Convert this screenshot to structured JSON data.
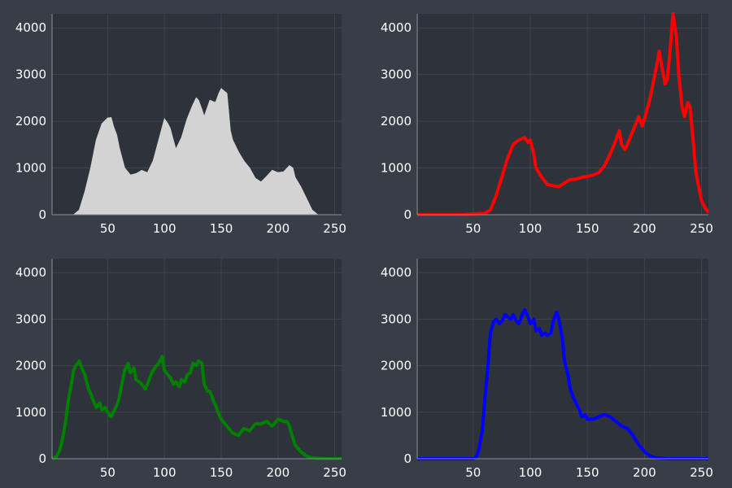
{
  "figure": {
    "background": "#383e48",
    "plot_background": "#2e323a",
    "grid_color": "#40454e",
    "axis_color": "#8a8f98"
  },
  "chart_data": [
    {
      "type": "area",
      "color": "#d3d3d3",
      "xlim": [
        1,
        256
      ],
      "ylim": [
        0,
        4300
      ],
      "xticks": [
        50,
        100,
        150,
        200,
        250
      ],
      "yticks": [
        0,
        1000,
        2000,
        3000,
        4000
      ],
      "grid": true,
      "x": [
        1,
        10,
        20,
        25,
        30,
        35,
        40,
        45,
        50,
        53,
        55,
        58,
        60,
        65,
        70,
        75,
        80,
        85,
        90,
        95,
        100,
        103,
        105,
        110,
        115,
        120,
        125,
        128,
        130,
        133,
        135,
        140,
        145,
        148,
        150,
        155,
        158,
        160,
        165,
        170,
        175,
        180,
        185,
        190,
        195,
        200,
        205,
        210,
        213,
        215,
        220,
        225,
        230,
        235,
        240,
        250,
        256
      ],
      "y": [
        0,
        0,
        0,
        100,
        500,
        1000,
        1600,
        1950,
        2070,
        2080,
        1900,
        1700,
        1450,
        1000,
        850,
        880,
        950,
        900,
        1150,
        1600,
        2050,
        1950,
        1850,
        1400,
        1650,
        2050,
        2350,
        2500,
        2450,
        2250,
        2100,
        2450,
        2400,
        2600,
        2700,
        2600,
        1800,
        1600,
        1350,
        1150,
        1000,
        780,
        700,
        820,
        950,
        900,
        920,
        1050,
        1000,
        800,
        600,
        350,
        100,
        0,
        0,
        0,
        0
      ]
    },
    {
      "type": "line",
      "color": "#ff0000",
      "xlim": [
        1,
        256
      ],
      "ylim": [
        0,
        4300
      ],
      "xticks": [
        50,
        100,
        150,
        200,
        250
      ],
      "yticks": [
        0,
        1000,
        2000,
        3000,
        4000
      ],
      "grid": true,
      "x": [
        1,
        20,
        40,
        60,
        65,
        70,
        75,
        80,
        85,
        90,
        95,
        98,
        100,
        103,
        105,
        110,
        115,
        120,
        125,
        130,
        135,
        140,
        145,
        150,
        155,
        160,
        165,
        170,
        175,
        178,
        180,
        183,
        185,
        190,
        195,
        198,
        200,
        205,
        210,
        213,
        215,
        218,
        220,
        222,
        225,
        228,
        230,
        233,
        235,
        238,
        240,
        243,
        245,
        250,
        253,
        256
      ],
      "y": [
        0,
        0,
        0,
        30,
        100,
        400,
        800,
        1200,
        1500,
        1600,
        1650,
        1550,
        1600,
        1300,
        1000,
        800,
        650,
        620,
        600,
        680,
        750,
        760,
        800,
        820,
        850,
        900,
        1050,
        1300,
        1600,
        1800,
        1500,
        1400,
        1500,
        1800,
        2100,
        1900,
        2050,
        2500,
        3100,
        3500,
        3200,
        2800,
        2900,
        3400,
        4300,
        3800,
        3000,
        2300,
        2100,
        2400,
        2300,
        1500,
        900,
        300,
        150,
        50
      ]
    },
    {
      "type": "line",
      "color": "#008000",
      "xlim": [
        1,
        256
      ],
      "ylim": [
        0,
        4300
      ],
      "xticks": [
        50,
        100,
        150,
        200,
        250
      ],
      "yticks": [
        0,
        1000,
        2000,
        3000,
        4000
      ],
      "grid": true,
      "x": [
        1,
        5,
        8,
        10,
        13,
        15,
        18,
        20,
        22,
        25,
        28,
        30,
        33,
        35,
        38,
        40,
        43,
        45,
        48,
        50,
        53,
        55,
        58,
        60,
        62,
        65,
        68,
        70,
        73,
        75,
        78,
        80,
        83,
        85,
        88,
        90,
        93,
        95,
        98,
        100,
        103,
        105,
        108,
        110,
        113,
        115,
        118,
        120,
        123,
        125,
        128,
        130,
        133,
        135,
        138,
        140,
        143,
        145,
        148,
        150,
        155,
        160,
        165,
        170,
        175,
        180,
        185,
        190,
        195,
        200,
        205,
        208,
        210,
        213,
        215,
        220,
        225,
        230,
        240,
        250,
        256
      ],
      "y": [
        0,
        50,
        200,
        400,
        800,
        1200,
        1600,
        1900,
        2000,
        2100,
        1900,
        1800,
        1500,
        1400,
        1200,
        1100,
        1200,
        1050,
        1100,
        1000,
        900,
        1000,
        1150,
        1300,
        1550,
        1900,
        2050,
        1850,
        1950,
        1700,
        1650,
        1600,
        1500,
        1600,
        1800,
        1900,
        2000,
        2050,
        2200,
        1900,
        1800,
        1750,
        1600,
        1650,
        1550,
        1700,
        1650,
        1800,
        1850,
        2050,
        2000,
        2100,
        2050,
        1600,
        1450,
        1450,
        1250,
        1150,
        950,
        850,
        700,
        550,
        500,
        650,
        600,
        750,
        750,
        800,
        700,
        850,
        800,
        800,
        700,
        450,
        300,
        150,
        60,
        20,
        0,
        0,
        0
      ]
    },
    {
      "type": "line",
      "color": "#0000ff",
      "xlim": [
        1,
        256
      ],
      "ylim": [
        0,
        4300
      ],
      "xticks": [
        50,
        100,
        150,
        200,
        250
      ],
      "yticks": [
        0,
        1000,
        2000,
        3000,
        4000
      ],
      "grid": true,
      "x": [
        1,
        20,
        40,
        45,
        50,
        53,
        55,
        58,
        60,
        63,
        65,
        68,
        70,
        73,
        75,
        78,
        80,
        83,
        85,
        88,
        90,
        93,
        95,
        98,
        100,
        103,
        105,
        108,
        110,
        113,
        115,
        118,
        120,
        123,
        125,
        128,
        130,
        133,
        135,
        138,
        140,
        143,
        145,
        148,
        150,
        155,
        160,
        165,
        170,
        175,
        180,
        185,
        190,
        195,
        200,
        205,
        210,
        220,
        230,
        240,
        250,
        256
      ],
      "y": [
        0,
        0,
        0,
        0,
        0,
        50,
        200,
        600,
        1200,
        2000,
        2700,
        2950,
        3000,
        2900,
        2950,
        3100,
        3050,
        3000,
        3100,
        2950,
        2900,
        3100,
        3200,
        3050,
        2900,
        3000,
        2750,
        2800,
        2650,
        2700,
        2650,
        2700,
        2950,
        3150,
        3000,
        2600,
        2100,
        1800,
        1500,
        1300,
        1200,
        1050,
        900,
        950,
        850,
        850,
        900,
        950,
        900,
        800,
        700,
        650,
        500,
        300,
        150,
        60,
        20,
        0,
        0,
        0,
        0,
        0
      ]
    }
  ]
}
